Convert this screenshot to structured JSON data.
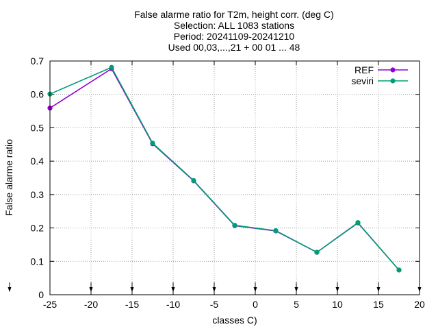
{
  "chart_data": {
    "type": "line",
    "title_lines": [
      "False alarme ratio  for T2m, height corr. (deg C)",
      "Selection: ALL    1083 stations",
      "Period: 20241109-20241210",
      "Used 00,03,...,21 + 00 01 ... 48"
    ],
    "xlabel": "classes C)",
    "ylabel": "False alarme ratio",
    "xlim": [
      -25,
      20
    ],
    "ylim": [
      0,
      0.7
    ],
    "xticks": [
      -25,
      -20,
      -15,
      -10,
      -5,
      0,
      5,
      10,
      15,
      20
    ],
    "yticks": [
      0,
      0.1,
      0.2,
      0.3,
      0.4,
      0.5,
      0.6,
      0.7
    ],
    "grid": true,
    "legend_position": "top-right",
    "series": [
      {
        "name": "REF",
        "color": "#9400d3",
        "x": [
          -25,
          -17.5,
          -12.5,
          -7.5,
          -2.5,
          2.5,
          7.5,
          12.5,
          17.5
        ],
        "y": [
          0.559,
          0.677,
          0.452,
          0.341,
          0.207,
          0.191,
          0.127,
          0.215,
          0.074
        ]
      },
      {
        "name": "seviri",
        "color": "#009e73",
        "x": [
          -25,
          -17.5,
          -12.5,
          -7.5,
          -2.5,
          2.5,
          7.5,
          12.5,
          17.5
        ],
        "y": [
          0.601,
          0.681,
          0.454,
          0.342,
          0.208,
          0.192,
          0.127,
          0.216,
          0.074
        ]
      }
    ]
  }
}
